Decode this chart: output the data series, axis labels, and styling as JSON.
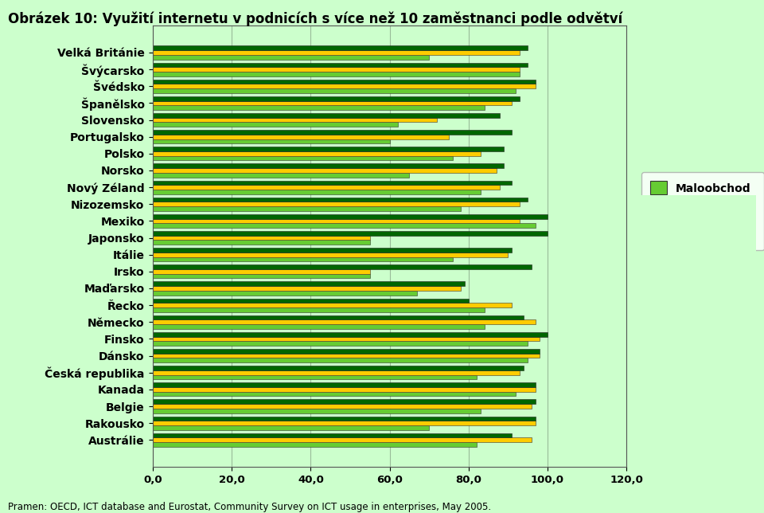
{
  "title": "Obrázek 10: Využití internetu v podnicích s více než 10 zaměstnanci podle odvětví",
  "footnote": "Pramen: OECD, ICT database and Eurostat, Community Survey on ICT usage in enterprises, May 2005.",
  "categories": [
    "Velká Británie",
    "Švýcarsko",
    "Švédsko",
    "Španělsko",
    "Slovensko",
    "Portugalsko",
    "Polsko",
    "Norsko",
    "Nový Zéland",
    "Nizozemsko",
    "Mexiko",
    "Japonsko",
    "Itálie",
    "Irsko",
    "Maďarsko",
    "Řecko",
    "Německo",
    "Finsko",
    "Dánsko",
    "Česká republika",
    "Kanada",
    "Belgie",
    "Rakousko",
    "Austrálie"
  ],
  "maloobchod": [
    70,
    93,
    92,
    84,
    62,
    60,
    76,
    65,
    83,
    78,
    97,
    55,
    76,
    55,
    67,
    84,
    84,
    95,
    95,
    82,
    92,
    83,
    70,
    82
  ],
  "velkoobchod": [
    93,
    93,
    97,
    91,
    72,
    75,
    83,
    87,
    88,
    93,
    93,
    55,
    90,
    55,
    78,
    91,
    97,
    98,
    98,
    93,
    97,
    96,
    97,
    96
  ],
  "vyroba": [
    95,
    95,
    97,
    93,
    88,
    91,
    89,
    89,
    91,
    95,
    100,
    100,
    91,
    96,
    79,
    80,
    94,
    100,
    98,
    94,
    97,
    97,
    97,
    91
  ],
  "color_maloobchod": "#66cc33",
  "color_velkoobchod": "#ffcc00",
  "color_vyroba": "#006600",
  "xlim": [
    0,
    120
  ],
  "xticks": [
    0,
    20,
    40,
    60,
    80,
    100,
    120
  ],
  "xtick_labels": [
    "0,0",
    "20,0",
    "40,0",
    "60,0",
    "80,0",
    "100,0",
    "120,0"
  ],
  "bg_color": "#ccffcc",
  "plot_area_color": "#ccffcc",
  "outer_bg_color": "#ccffcc",
  "grid_color": "#99bb99",
  "title_fontsize": 12,
  "label_fontsize": 10,
  "tick_fontsize": 9.5,
  "legend_fontsize": 10,
  "bar_height": 0.27
}
